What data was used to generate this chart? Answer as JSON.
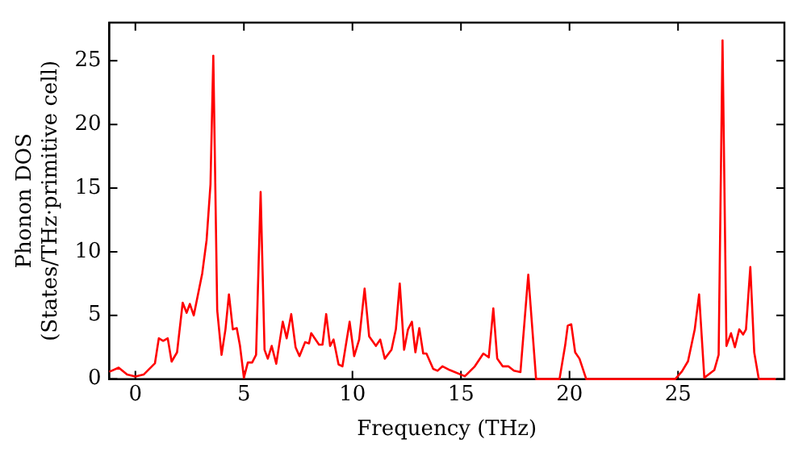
{
  "chart_data": {
    "type": "line",
    "xlabel": "Frequency (THz)",
    "ylabel": "Phonon DOS\n(States/THz·primitive cell)",
    "xlim": [
      -1.2,
      29.9
    ],
    "ylim": [
      0,
      28
    ],
    "xticks": [
      0,
      5,
      10,
      15,
      20,
      25
    ],
    "yticks": [
      0,
      5,
      10,
      15,
      20,
      25
    ],
    "grid": false,
    "legend": false,
    "marker": "none",
    "line_style": "solid",
    "series": [
      {
        "color": "#ff0000",
        "x": [
          -1.2,
          -0.77,
          -0.38,
          0,
          0.38,
          0.9,
          1.08,
          1.28,
          1.49,
          1.67,
          1.92,
          2.18,
          2.36,
          2.51,
          2.69,
          3.08,
          3.28,
          3.46,
          3.59,
          3.77,
          3.97,
          4.15,
          4.31,
          4.49,
          4.67,
          4.82,
          5.0,
          5.18,
          5.38,
          5.56,
          5.77,
          5.95,
          6.1,
          6.28,
          6.49,
          6.79,
          6.97,
          7.18,
          7.38,
          7.56,
          7.82,
          8.0,
          8.1,
          8.46,
          8.62,
          8.79,
          8.97,
          9.13,
          9.36,
          9.54,
          9.87,
          10.08,
          10.31,
          10.56,
          10.77,
          11.08,
          11.28,
          11.49,
          11.8,
          12.0,
          12.18,
          12.38,
          12.56,
          12.74,
          12.9,
          13.08,
          13.26,
          13.41,
          13.72,
          13.92,
          14.15,
          14.49,
          15.18,
          15.64,
          16.03,
          16.28,
          16.49,
          16.67,
          16.92,
          17.18,
          17.44,
          17.74,
          18.1,
          18.46,
          19.54,
          19.8,
          19.92,
          20.08,
          20.26,
          20.46,
          20.77,
          24.87,
          25.18,
          25.46,
          25.77,
          25.97,
          26.21,
          26.67,
          26.87,
          27.05,
          27.23,
          27.44,
          27.62,
          27.82,
          28.0,
          28.13,
          28.33,
          28.51,
          28.72,
          29.5
        ],
        "values": [
          0.57,
          0.89,
          0.35,
          0.2,
          0.35,
          1.23,
          3.2,
          3.0,
          3.2,
          1.37,
          2.1,
          6.0,
          5.2,
          5.9,
          5.0,
          8.3,
          10.9,
          15.3,
          25.4,
          5.4,
          1.9,
          3.9,
          6.65,
          3.9,
          4.0,
          2.6,
          0.1,
          1.3,
          1.3,
          1.9,
          14.7,
          2.3,
          1.6,
          2.6,
          1.2,
          4.5,
          3.2,
          5.1,
          2.5,
          1.8,
          2.9,
          2.8,
          3.6,
          2.7,
          2.7,
          5.1,
          2.6,
          3.1,
          1.15,
          1.0,
          4.5,
          1.8,
          3.1,
          7.1,
          3.35,
          2.6,
          3.1,
          1.6,
          2.3,
          3.9,
          7.5,
          2.3,
          3.9,
          4.5,
          2.1,
          4.0,
          2.0,
          2.0,
          0.8,
          0.65,
          1.0,
          0.7,
          0.22,
          1.0,
          2.0,
          1.7,
          5.55,
          1.6,
          1.0,
          1.0,
          0.65,
          0.55,
          8.2,
          0,
          0,
          2.65,
          4.2,
          4.3,
          2.1,
          1.6,
          0,
          0,
          0.6,
          1.4,
          3.9,
          6.65,
          0.1,
          0.7,
          1.9,
          26.6,
          2.6,
          3.6,
          2.5,
          3.9,
          3.5,
          3.9,
          8.8,
          2.1,
          0,
          0
        ]
      }
    ]
  }
}
